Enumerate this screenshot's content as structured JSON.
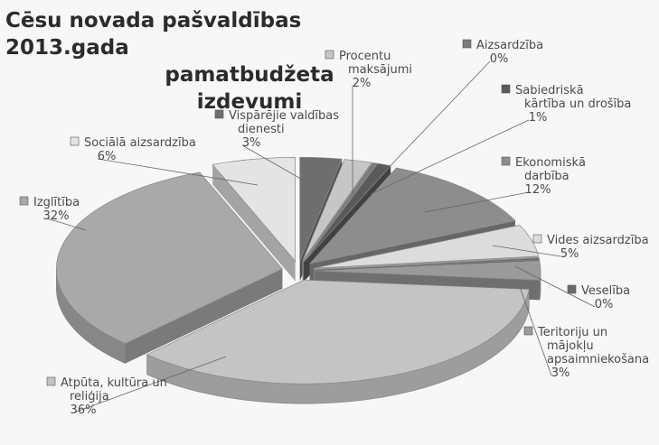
{
  "chart_data": {
    "type": "pie",
    "title_line1": "Cēsu novada pašvaldības 2013.gada",
    "title_line2": "pamatbudžeta izdevumi",
    "three_d": true,
    "exploded": true,
    "slices": [
      {
        "name": "Vispārējie valdības dienesti",
        "pct_label": "3%",
        "value": 3,
        "color": "#6e6e6e"
      },
      {
        "name": "Procentu maksājumi",
        "pct_label": "2%",
        "value": 2,
        "color": "#c6c6c6"
      },
      {
        "name": "Aizsardzība",
        "pct_label": "0%",
        "value": 0.3,
        "color": "#7a7a7a"
      },
      {
        "name": "Sabiedriskā kārtība un drošība",
        "pct_label": "1%",
        "value": 1,
        "color": "#5a5a5a"
      },
      {
        "name": "Ekonomiskā darbība",
        "pct_label": "12%",
        "value": 12,
        "color": "#8d8d8d"
      },
      {
        "name": "Vides aizsardzība",
        "pct_label": "5%",
        "value": 5,
        "color": "#dcdcdc"
      },
      {
        "name": "Veselība",
        "pct_label": "0%",
        "value": 0.3,
        "color": "#6a6a6a"
      },
      {
        "name": "Teritoriju un mājokļu apsaimniekošana",
        "pct_label": "3%",
        "value": 3,
        "color": "#9a9a9a"
      },
      {
        "name": "Atpūta, kultūra un reliģija",
        "pct_label": "36%",
        "value": 36,
        "color": "#c4c4c4"
      },
      {
        "name": "Izglītība",
        "pct_label": "32%",
        "value": 32,
        "color": "#a9a9a9"
      },
      {
        "name": "Sociālā aizsardzība",
        "pct_label": "6%",
        "value": 6,
        "color": "#e4e4e4"
      }
    ]
  }
}
